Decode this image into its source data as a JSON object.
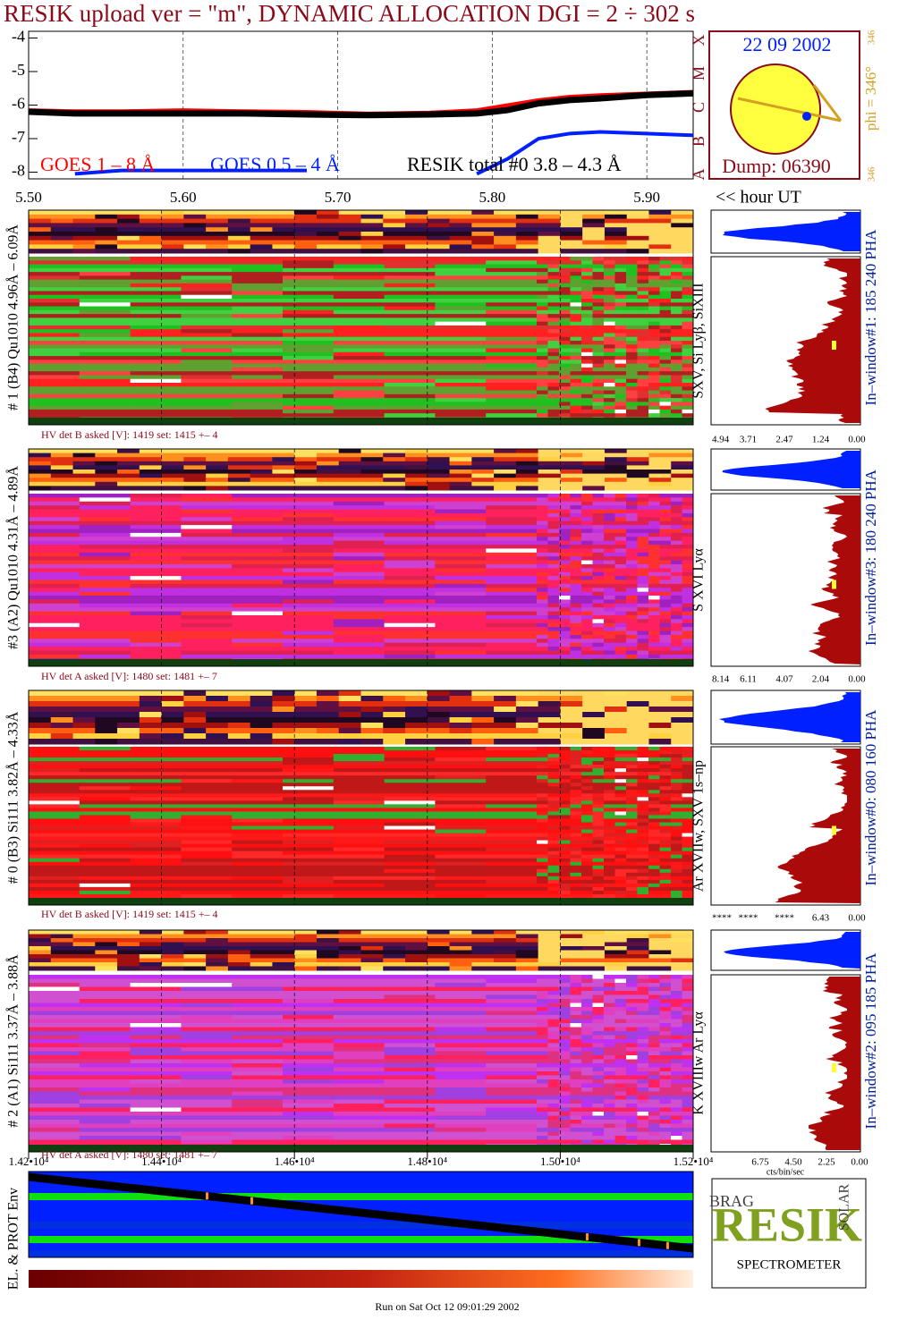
{
  "header": {
    "title": "RESIK upload ver = \"m\", DYNAMIC ALLOCATION  DGI =   2 ÷ 302 s"
  },
  "chart_data": {
    "type": "line",
    "xlim": [
      5.5,
      5.93
    ],
    "xticks": [
      {
        "value": 5.5,
        "label": "5.50"
      },
      {
        "value": 5.6,
        "label": "5.60"
      },
      {
        "value": 5.7,
        "label": "5.70"
      },
      {
        "value": 5.8,
        "label": "5.80"
      },
      {
        "value": 5.9,
        "label": "5.90"
      }
    ],
    "x_axis_label": "<< hour UT",
    "ylim": [
      -8.2,
      -3.8
    ],
    "yticks": [
      -4,
      -5,
      -6,
      -7,
      -8
    ],
    "x": [
      5.5,
      5.53,
      5.56,
      5.6,
      5.64,
      5.68,
      5.72,
      5.76,
      5.79,
      5.81,
      5.83,
      5.85,
      5.87,
      5.9,
      5.93
    ],
    "series": [
      {
        "name": "GOES 1 – 8 Å",
        "color": "#ff0000",
        "values": [
          -6.15,
          -6.18,
          -6.18,
          -6.15,
          -6.18,
          -6.2,
          -6.25,
          -6.22,
          -6.15,
          -6.0,
          -5.85,
          -5.75,
          -5.7,
          -5.65,
          -5.6
        ]
      },
      {
        "name": "GOES 0.5 – 4 Å",
        "color": "#0020ff",
        "values": [
          null,
          -8.05,
          -7.95,
          -7.95,
          -7.95,
          -7.95,
          null,
          null,
          -8.05,
          -7.6,
          -7.0,
          -6.85,
          -6.8,
          -6.85,
          -6.9
        ]
      },
      {
        "name": "RESIK total #0  3.8 – 4.3 Å",
        "color": "#000000",
        "values": [
          -6.2,
          -6.25,
          -6.25,
          -6.25,
          -6.25,
          -6.28,
          -6.3,
          -6.28,
          -6.25,
          -6.15,
          -5.95,
          -5.85,
          -5.8,
          -5.7,
          -5.65
        ]
      }
    ],
    "goes_classes": [
      "X",
      "M",
      "C",
      "B",
      "A"
    ]
  },
  "sun_panel": {
    "date": "22 09 2002",
    "phi_label": "phi = 346°",
    "phi_top": "346",
    "phi_bottom": "346",
    "dump": "Dump: 06390"
  },
  "panels": [
    {
      "detector_label": "# 1 (B4) Qu1010 4.96Å – 6.09Å",
      "lines_label": "SXV, Si Lyβ, SiXIII",
      "window_label": "In–window#1:  185 240 PHA",
      "hv_label": "HV det B asked [V]:  1419 set:  1415 +–   4",
      "hist_ticks": [
        "4.94",
        "3.71",
        "2.47",
        "1.24",
        "0.00"
      ]
    },
    {
      "detector_label": "#3 (A2) Qu1010  4.31Å – 4.89Å",
      "lines_label": "S XVI Lyα",
      "window_label": "In–window#3:  180 240 PHA",
      "hv_label": "HV det A asked [V]:  1480 set:  1481 +–   7",
      "hist_ticks": [
        "8.14",
        "6.11",
        "4.07",
        "2.04",
        "0.00"
      ]
    },
    {
      "detector_label": "# 0 (B3) Si111  3.82Å – 4.33Å",
      "lines_label": "Ar XVIIw,  SXV 1s–np",
      "window_label": "In–window#0:  080 160 PHA",
      "hv_label": "HV det B asked [V]:  1419 set:  1415 +–   4",
      "hist_ticks": [
        "****",
        "****",
        "****",
        "6.43",
        "0.00"
      ]
    },
    {
      "detector_label": "# 2 (A1) Si111  3.37Å – 3.88Å",
      "lines_label": "K XVIIIw  Ar Lyα",
      "window_label": "In–window#2:  095 185 PHA",
      "hv_label": "HV det A asked [V]:  1480 set:  1481 +–   7",
      "hist_ticks": [
        "6.75",
        "4.50",
        "2.25",
        "0.00"
      ]
    }
  ],
  "time_axis": {
    "lim": [
      14200,
      15200
    ],
    "ticks": [
      {
        "value": 14200,
        "label": "1.42•10⁴"
      },
      {
        "value": 14400,
        "label": "1.44•10⁴"
      },
      {
        "value": 14600,
        "label": "1.46•10⁴"
      },
      {
        "value": 14800,
        "label": "1.48•10⁴"
      },
      {
        "value": 15000,
        "label": "1.50•10⁴"
      },
      {
        "value": 15200,
        "label": "1.52•10⁴"
      }
    ]
  },
  "hist_unit": "cts/bin/sec",
  "env_label": "EL. & PROT Env",
  "logo": {
    "main": "RESIK",
    "bottom": "SPECTROMETER",
    "left": "BRAG",
    "right": "SOLAR"
  },
  "footer": "Run on Sat Oct 12 09:01:29 2002"
}
